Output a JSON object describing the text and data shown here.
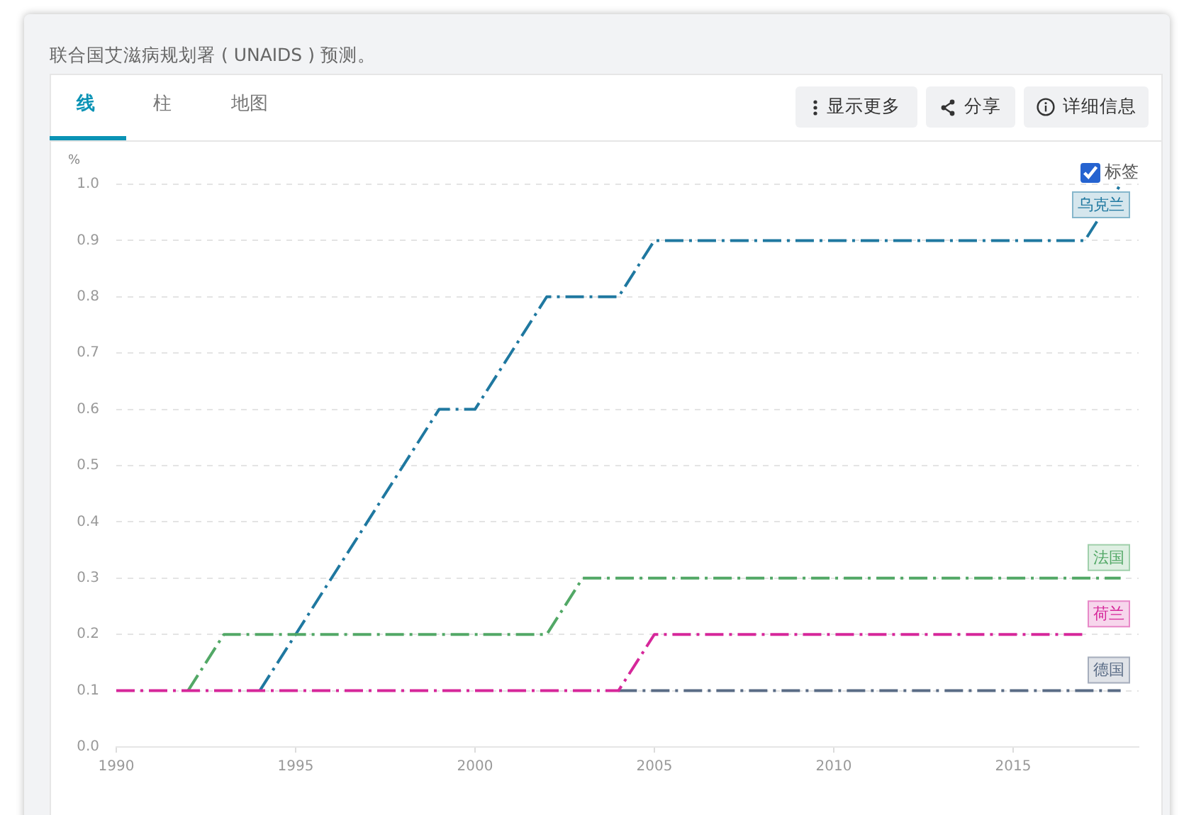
{
  "chart_data": {
    "type": "line",
    "annotations": [
      "联合国艾滋病规划署 ( UNAIDS ) 预测。",
      "线",
      "柱",
      "地图",
      "显示更多",
      "分享",
      "详细信息",
      "标签"
    ],
    "ylabel": "%",
    "x": [
      1990,
      1991,
      1992,
      1993,
      1994,
      1995,
      1996,
      1997,
      1998,
      1999,
      2000,
      2001,
      2002,
      2003,
      2004,
      2005,
      2006,
      2007,
      2008,
      2009,
      2010,
      2011,
      2012,
      2013,
      2014,
      2015,
      2016,
      2017,
      2018
    ],
    "xlim": [
      1990,
      2018.5
    ],
    "xticks": [
      1990,
      1995,
      2000,
      2005,
      2010,
      2015
    ],
    "ylim": [
      0,
      1
    ],
    "yticks": [
      {
        "value": 0,
        "label": "0.0"
      },
      0.1,
      0.2,
      0.3,
      0.4,
      0.5,
      0.6,
      0.7,
      0.8,
      0.9,
      {
        "value": 1,
        "label": "1.0"
      }
    ],
    "grid": "y",
    "line_style": "dashed",
    "series": [
      {
        "name": "乌克兰",
        "color": "#1f78a0",
        "values": [
          null,
          null,
          null,
          null,
          0.1,
          0.2,
          0.3,
          0.4,
          0.5,
          0.6,
          0.6,
          0.7,
          0.8,
          0.8,
          0.8,
          0.9,
          0.9,
          0.9,
          0.9,
          0.9,
          0.9,
          0.9,
          0.9,
          0.9,
          0.9,
          0.9,
          0.9,
          0.9,
          1.0
        ]
      },
      {
        "name": "法国",
        "color": "#52a866",
        "values": [
          null,
          null,
          0.1,
          0.2,
          0.2,
          0.2,
          0.2,
          0.2,
          0.2,
          0.2,
          0.2,
          0.2,
          0.2,
          0.3,
          0.3,
          0.3,
          0.3,
          0.3,
          0.3,
          0.3,
          0.3,
          0.3,
          0.3,
          0.3,
          0.3,
          0.3,
          0.3,
          0.3,
          0.3
        ]
      },
      {
        "name": "德国",
        "color": "#5a6c86",
        "values": [
          null,
          null,
          null,
          null,
          null,
          null,
          null,
          null,
          null,
          null,
          null,
          null,
          null,
          null,
          0.1,
          0.1,
          0.1,
          0.1,
          0.1,
          0.1,
          0.1,
          0.1,
          0.1,
          0.1,
          0.1,
          0.1,
          0.1,
          0.1,
          0.1
        ]
      },
      {
        "name": "荷兰",
        "color": "#d6279a",
        "values": [
          0.1,
          0.1,
          0.1,
          0.1,
          0.1,
          0.1,
          0.1,
          0.1,
          0.1,
          0.1,
          0.1,
          0.1,
          0.1,
          0.1,
          0.1,
          0.2,
          0.2,
          0.2,
          0.2,
          0.2,
          0.2,
          0.2,
          0.2,
          0.2,
          0.2,
          0.2,
          0.2,
          0.2,
          null
        ]
      }
    ]
  }
}
